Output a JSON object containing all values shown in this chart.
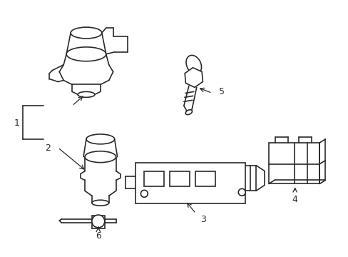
{
  "background_color": "#ffffff",
  "line_color": "#2a2a2a",
  "line_width": 1.2,
  "fig_width": 4.89,
  "fig_height": 3.6,
  "dpi": 100
}
